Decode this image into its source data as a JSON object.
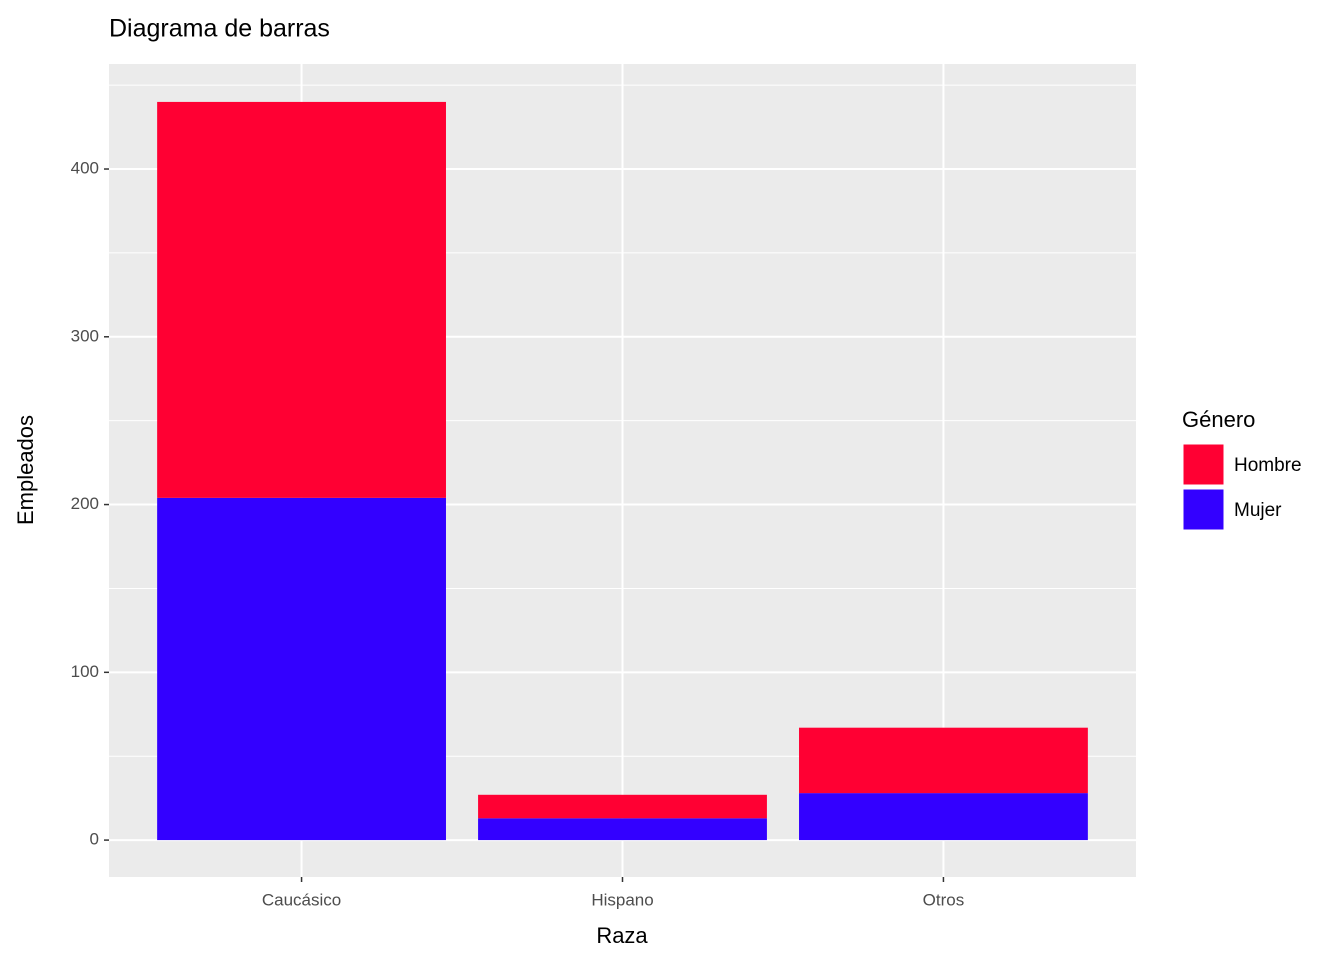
{
  "chart_data": {
    "type": "stacked-bar",
    "title": "Diagrama de barras",
    "x_label": "Raza",
    "y_label": "Empleados",
    "categories": [
      "Caucásico",
      "Hispano",
      "Otros"
    ],
    "series": [
      {
        "name": "Hombre",
        "color": "#ff0033",
        "values": [
          236,
          14,
          39
        ]
      },
      {
        "name": "Mujer",
        "color": "#3300ff",
        "values": [
          204,
          13,
          28
        ]
      }
    ],
    "stack_order": "Mujer",
    "legend_title": "Género",
    "legend_position": "right",
    "ylim": [
      -22,
      462.6
    ],
    "yticks": [
      0,
      100,
      200,
      300,
      400
    ],
    "minor_yticks": [
      50,
      150,
      250,
      350,
      450
    ],
    "grid": true
  }
}
